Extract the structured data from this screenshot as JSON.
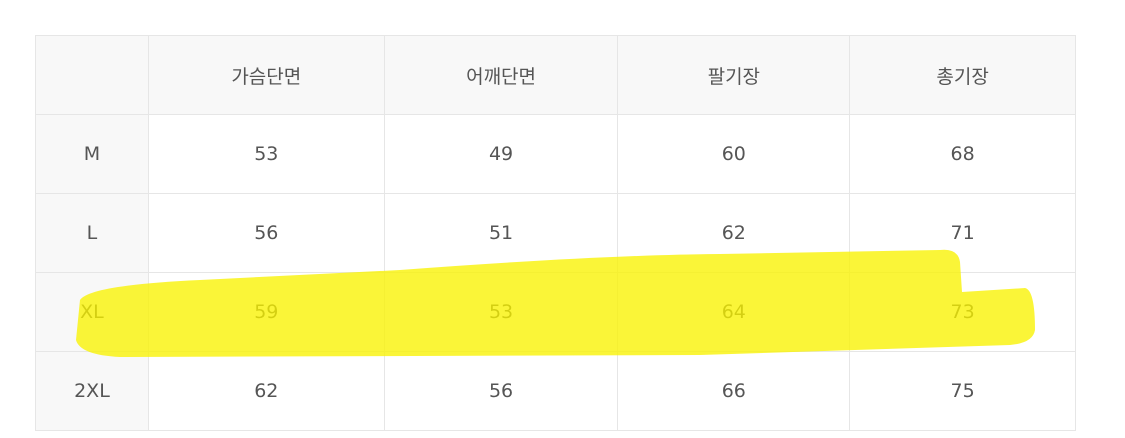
{
  "table": {
    "headers": [
      "",
      "가슴단면",
      "어깨단면",
      "팔기장",
      "총기장"
    ],
    "rows": [
      {
        "size": "M",
        "values": [
          "53",
          "49",
          "60",
          "68"
        ]
      },
      {
        "size": "L",
        "values": [
          "56",
          "51",
          "62",
          "71"
        ]
      },
      {
        "size": "XL",
        "values": [
          "59",
          "53",
          "64",
          "73"
        ]
      },
      {
        "size": "2XL",
        "values": [
          "62",
          "56",
          "66",
          "75"
        ]
      }
    ]
  },
  "highlight": {
    "row": "XL",
    "color": "#f9f200"
  }
}
